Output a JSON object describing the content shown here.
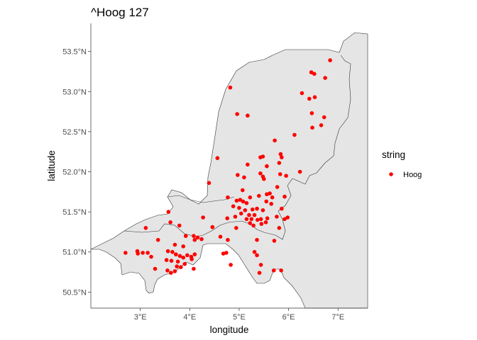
{
  "chart_data": {
    "type": "scatter",
    "title": "^Hoog 127",
    "xlabel": "longitude",
    "ylabel": "latitude",
    "xlim": [
      2.0,
      7.6
    ],
    "ylim": [
      50.3,
      53.85
    ],
    "x_ticks": [
      {
        "value": 3,
        "label": "3°E"
      },
      {
        "value": 4,
        "label": "4°E"
      },
      {
        "value": 5,
        "label": "5°E"
      },
      {
        "value": 6,
        "label": "6°E"
      },
      {
        "value": 7,
        "label": "7°E"
      }
    ],
    "y_ticks": [
      {
        "value": 50.5,
        "label": "50.5°N"
      },
      {
        "value": 51.0,
        "label": "51.0°N"
      },
      {
        "value": 51.5,
        "label": "51.5°N"
      },
      {
        "value": 52.0,
        "label": "52.0°N"
      },
      {
        "value": 52.5,
        "label": "52.5°N"
      },
      {
        "value": 53.0,
        "label": "53.0°N"
      },
      {
        "value": 53.5,
        "label": "53.5°N"
      }
    ],
    "grid": false,
    "legend": {
      "title": "string",
      "position": "right",
      "entries": [
        {
          "label": "Hoog",
          "color": "#ff0000"
        }
      ]
    },
    "point_color": "#ff0000",
    "land_fill": "#e5e5e5",
    "border_color": "#333333",
    "series": [
      {
        "name": "Hoog",
        "points": [
          {
            "x": 6.84,
            "y": 53.39
          },
          {
            "x": 6.46,
            "y": 53.24
          },
          {
            "x": 6.52,
            "y": 53.22
          },
          {
            "x": 6.74,
            "y": 53.17
          },
          {
            "x": 4.82,
            "y": 53.05
          },
          {
            "x": 6.27,
            "y": 52.98
          },
          {
            "x": 6.42,
            "y": 52.91
          },
          {
            "x": 6.53,
            "y": 52.93
          },
          {
            "x": 4.96,
            "y": 52.72
          },
          {
            "x": 5.17,
            "y": 52.7
          },
          {
            "x": 6.47,
            "y": 52.73
          },
          {
            "x": 6.72,
            "y": 52.68
          },
          {
            "x": 6.66,
            "y": 52.58
          },
          {
            "x": 6.48,
            "y": 52.55
          },
          {
            "x": 6.12,
            "y": 52.46
          },
          {
            "x": 5.72,
            "y": 52.39
          },
          {
            "x": 5.84,
            "y": 52.22
          },
          {
            "x": 5.86,
            "y": 52.18
          },
          {
            "x": 5.48,
            "y": 52.19
          },
          {
            "x": 5.43,
            "y": 52.18
          },
          {
            "x": 4.56,
            "y": 52.17
          },
          {
            "x": 5.81,
            "y": 52.11
          },
          {
            "x": 5.17,
            "y": 52.09
          },
          {
            "x": 5.56,
            "y": 52.07
          },
          {
            "x": 4.97,
            "y": 51.96
          },
          {
            "x": 5.1,
            "y": 51.93
          },
          {
            "x": 5.83,
            "y": 51.97
          },
          {
            "x": 5.95,
            "y": 51.95
          },
          {
            "x": 6.23,
            "y": 52.0
          },
          {
            "x": 5.43,
            "y": 51.98
          },
          {
            "x": 5.48,
            "y": 51.94
          },
          {
            "x": 5.5,
            "y": 51.91
          },
          {
            "x": 4.39,
            "y": 51.86
          },
          {
            "x": 5.77,
            "y": 51.81
          },
          {
            "x": 5.07,
            "y": 51.77
          },
          {
            "x": 5.62,
            "y": 51.73
          },
          {
            "x": 5.56,
            "y": 51.72
          },
          {
            "x": 4.77,
            "y": 51.68
          },
          {
            "x": 5.22,
            "y": 51.68
          },
          {
            "x": 5.4,
            "y": 51.7
          },
          {
            "x": 5.67,
            "y": 51.68
          },
          {
            "x": 5.92,
            "y": 51.69
          },
          {
            "x": 4.95,
            "y": 51.64
          },
          {
            "x": 5.02,
            "y": 51.65
          },
          {
            "x": 5.08,
            "y": 51.63
          },
          {
            "x": 5.15,
            "y": 51.61
          },
          {
            "x": 5.55,
            "y": 51.63
          },
          {
            "x": 5.65,
            "y": 51.6
          },
          {
            "x": 4.88,
            "y": 51.57
          },
          {
            "x": 5.0,
            "y": 51.55
          },
          {
            "x": 5.12,
            "y": 51.52
          },
          {
            "x": 5.27,
            "y": 51.53
          },
          {
            "x": 5.36,
            "y": 51.54
          },
          {
            "x": 5.48,
            "y": 51.52
          },
          {
            "x": 5.86,
            "y": 51.54
          },
          {
            "x": 3.57,
            "y": 51.5
          },
          {
            "x": 5.04,
            "y": 51.48
          },
          {
            "x": 5.2,
            "y": 51.46
          },
          {
            "x": 5.31,
            "y": 51.46
          },
          {
            "x": 5.76,
            "y": 51.44
          },
          {
            "x": 4.76,
            "y": 51.42
          },
          {
            "x": 4.92,
            "y": 51.44
          },
          {
            "x": 5.15,
            "y": 51.41
          },
          {
            "x": 5.25,
            "y": 51.41
          },
          {
            "x": 5.37,
            "y": 51.4
          },
          {
            "x": 5.44,
            "y": 51.41
          },
          {
            "x": 5.57,
            "y": 51.42
          },
          {
            "x": 5.92,
            "y": 51.41
          },
          {
            "x": 5.98,
            "y": 51.43
          },
          {
            "x": 4.27,
            "y": 51.43
          },
          {
            "x": 3.61,
            "y": 51.37
          },
          {
            "x": 3.79,
            "y": 51.33
          },
          {
            "x": 5.22,
            "y": 51.36
          },
          {
            "x": 5.29,
            "y": 51.33
          },
          {
            "x": 5.45,
            "y": 51.35
          },
          {
            "x": 5.54,
            "y": 51.37
          },
          {
            "x": 3.11,
            "y": 51.3
          },
          {
            "x": 4.46,
            "y": 51.31
          },
          {
            "x": 4.94,
            "y": 51.3
          },
          {
            "x": 5.81,
            "y": 51.3
          },
          {
            "x": 3.92,
            "y": 51.2
          },
          {
            "x": 4.08,
            "y": 51.2
          },
          {
            "x": 4.16,
            "y": 51.18
          },
          {
            "x": 4.24,
            "y": 51.16
          },
          {
            "x": 4.62,
            "y": 51.19
          },
          {
            "x": 4.77,
            "y": 51.15
          },
          {
            "x": 3.7,
            "y": 51.09
          },
          {
            "x": 3.87,
            "y": 51.07
          },
          {
            "x": 5.36,
            "y": 51.15
          },
          {
            "x": 5.71,
            "y": 51.14
          },
          {
            "x": 3.36,
            "y": 51.15
          },
          {
            "x": 4.1,
            "y": 51.15
          },
          {
            "x": 3.56,
            "y": 51.01
          },
          {
            "x": 3.65,
            "y": 51.0
          },
          {
            "x": 3.72,
            "y": 50.97
          },
          {
            "x": 3.8,
            "y": 50.95
          },
          {
            "x": 3.87,
            "y": 50.93
          },
          {
            "x": 3.95,
            "y": 50.96
          },
          {
            "x": 4.03,
            "y": 50.94
          },
          {
            "x": 4.1,
            "y": 50.97
          },
          {
            "x": 3.53,
            "y": 50.9
          },
          {
            "x": 3.63,
            "y": 50.89
          },
          {
            "x": 3.76,
            "y": 50.88
          },
          {
            "x": 3.9,
            "y": 50.85
          },
          {
            "x": 4.04,
            "y": 50.91
          },
          {
            "x": 3.74,
            "y": 50.82
          },
          {
            "x": 3.82,
            "y": 50.81
          },
          {
            "x": 4.08,
            "y": 50.79
          },
          {
            "x": 3.55,
            "y": 50.77
          },
          {
            "x": 3.62,
            "y": 50.74
          },
          {
            "x": 3.3,
            "y": 50.79
          },
          {
            "x": 3.7,
            "y": 50.76
          },
          {
            "x": 2.94,
            "y": 51.01
          },
          {
            "x": 3.05,
            "y": 50.99
          },
          {
            "x": 3.15,
            "y": 50.99
          },
          {
            "x": 3.22,
            "y": 50.94
          },
          {
            "x": 2.7,
            "y": 50.99
          },
          {
            "x": 2.95,
            "y": 50.98
          },
          {
            "x": 4.68,
            "y": 50.98
          },
          {
            "x": 4.74,
            "y": 50.99
          },
          {
            "x": 4.83,
            "y": 50.84
          },
          {
            "x": 5.31,
            "y": 51.0
          },
          {
            "x": 5.36,
            "y": 50.96
          },
          {
            "x": 5.44,
            "y": 50.84
          },
          {
            "x": 5.41,
            "y": 50.74
          },
          {
            "x": 5.7,
            "y": 50.77
          },
          {
            "x": 5.85,
            "y": 50.77
          }
        ]
      }
    ]
  }
}
